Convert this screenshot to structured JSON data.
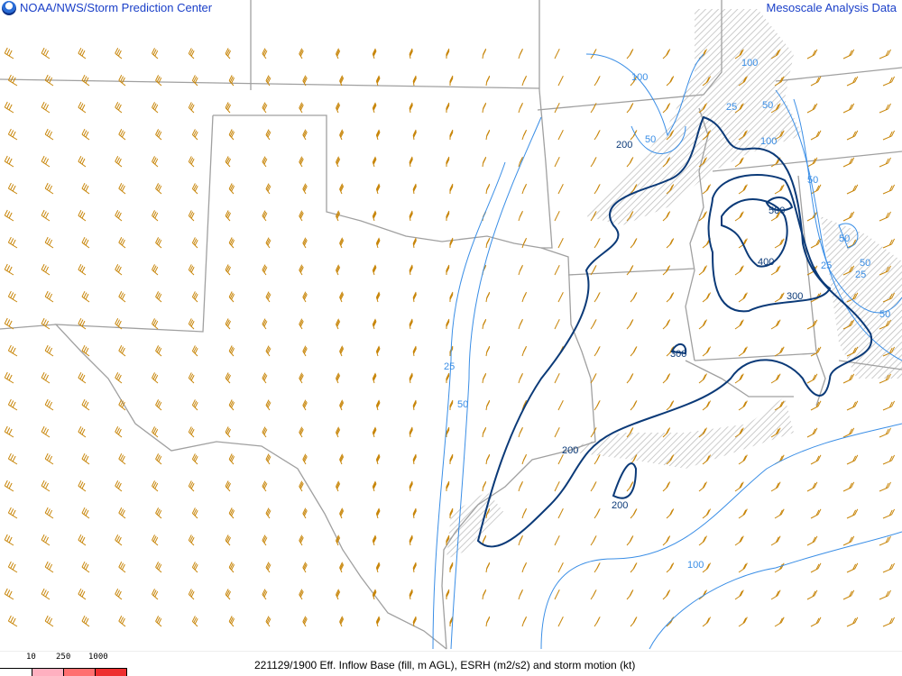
{
  "header": {
    "left_title": "NOAA/NWS/Storm Prediction Center",
    "right_title": "Mesoscale Analysis Data",
    "logo": "noaa-logo"
  },
  "footer": {
    "caption": "221129/1900 Eff. Inflow Base (fill, m AGL), ESRH (m2/s2) and storm motion (kt)"
  },
  "legend": {
    "thresholds": [
      "10",
      "250",
      "1000"
    ],
    "colors": [
      "#ffffff",
      "#ffb0c0",
      "#ff7070",
      "#ee3030"
    ]
  },
  "colors": {
    "barb": "#c8860a",
    "border": "#a0a0a0",
    "esrh_high": "#0b3a78",
    "esrh_low": "#3a8ee6",
    "hatch": "#b8b8b8"
  },
  "contour_labels": {
    "esrh_high": [
      "500",
      "400",
      "300",
      "300",
      "200",
      "200",
      "200"
    ],
    "esrh_low": [
      "100",
      "50",
      "25",
      "50",
      "100",
      "100",
      "50",
      "50",
      "25",
      "50",
      "25",
      "50",
      "100",
      "25",
      "50"
    ]
  }
}
